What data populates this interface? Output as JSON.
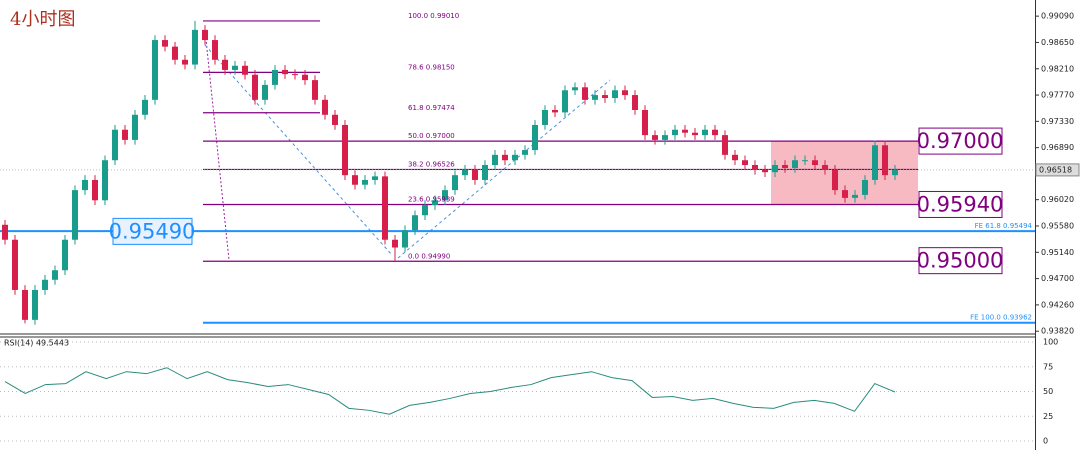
{
  "chart_data": [
    {
      "type": "candlestick",
      "title": "4小时图",
      "ylim": [
        0.9379,
        0.9936
      ],
      "yticks": [
        {
          "value": 0.9909,
          "label": "0.99090"
        },
        {
          "value": 0.9865,
          "label": "0.98650"
        },
        {
          "value": 0.9821,
          "label": "0.98210"
        },
        {
          "value": 0.9777,
          "label": "0.97770"
        },
        {
          "value": 0.9733,
          "label": "0.97330"
        },
        {
          "value": 0.9689,
          "label": "0.96890"
        },
        {
          "value": 0.9602,
          "label": "0.96020"
        },
        {
          "value": 0.9558,
          "label": "0.95580"
        },
        {
          "value": 0.9514,
          "label": "0.95140"
        },
        {
          "value": 0.947,
          "label": "0.94700"
        },
        {
          "value": 0.9426,
          "label": "0.94260"
        },
        {
          "value": 0.9382,
          "label": "0.93820"
        }
      ],
      "up_color": "#1a9c8c",
      "down_color": "#d6204b",
      "open": [
        0.956,
        0.9535,
        0.9451,
        0.9401,
        0.9451,
        0.9468,
        0.9484,
        0.9535,
        0.9618,
        0.9635,
        0.9601,
        0.9668,
        0.9719,
        0.9702,
        0.9744,
        0.9769,
        0.9869,
        0.9858,
        0.9836,
        0.9828,
        0.9886,
        0.9869,
        0.9836,
        0.9819,
        0.9826,
        0.9811,
        0.9769,
        0.9794,
        0.9819,
        0.9812,
        0.9811,
        0.9802,
        0.9769,
        0.9744,
        0.9727,
        0.9643,
        0.9627,
        0.9635,
        0.9641,
        0.9535,
        0.9522,
        0.9551,
        0.9576,
        0.9593,
        0.9601,
        0.9618,
        0.9643,
        0.9652,
        0.9635,
        0.966,
        0.9677,
        0.9668,
        0.9677,
        0.9685,
        0.9727,
        0.9752,
        0.9748,
        0.9785,
        0.979,
        0.9769,
        0.9777,
        0.9772,
        0.9785,
        0.9777,
        0.9752,
        0.971,
        0.9702,
        0.971,
        0.9719,
        0.9714,
        0.971,
        0.9719,
        0.971,
        0.9677,
        0.9668,
        0.966,
        0.9652,
        0.9648,
        0.966,
        0.9655,
        0.9668,
        0.9668,
        0.966,
        0.9652,
        0.9618,
        0.9605,
        0.961,
        0.9635,
        0.9693,
        0.9643
      ],
      "high": [
        0.9568,
        0.9543,
        0.9459,
        0.9459,
        0.9476,
        0.9492,
        0.9543,
        0.9626,
        0.9643,
        0.9643,
        0.9676,
        0.9727,
        0.9727,
        0.9752,
        0.9777,
        0.9877,
        0.9877,
        0.9866,
        0.9844,
        0.9901,
        0.9894,
        0.9877,
        0.9844,
        0.9834,
        0.9834,
        0.9819,
        0.9802,
        0.9827,
        0.9827,
        0.982,
        0.9819,
        0.981,
        0.9777,
        0.9752,
        0.9735,
        0.9651,
        0.9643,
        0.9649,
        0.9649,
        0.9543,
        0.9559,
        0.9584,
        0.9601,
        0.9609,
        0.9626,
        0.9651,
        0.966,
        0.966,
        0.9668,
        0.9685,
        0.9685,
        0.9685,
        0.9693,
        0.9735,
        0.976,
        0.976,
        0.9793,
        0.9798,
        0.9798,
        0.9785,
        0.9785,
        0.9793,
        0.9793,
        0.9785,
        0.976,
        0.9718,
        0.9718,
        0.9727,
        0.9727,
        0.9722,
        0.9727,
        0.9727,
        0.9718,
        0.9685,
        0.9676,
        0.9668,
        0.966,
        0.9668,
        0.9668,
        0.9676,
        0.9676,
        0.9676,
        0.9668,
        0.966,
        0.9626,
        0.9618,
        0.9643,
        0.9701,
        0.9701,
        0.966
      ],
      "low": [
        0.9527,
        0.9443,
        0.9395,
        0.9393,
        0.9443,
        0.946,
        0.9476,
        0.9527,
        0.961,
        0.9593,
        0.9593,
        0.966,
        0.9694,
        0.9694,
        0.9736,
        0.9761,
        0.985,
        0.9828,
        0.982,
        0.982,
        0.9861,
        0.9828,
        0.9811,
        0.9811,
        0.9803,
        0.9761,
        0.9761,
        0.9786,
        0.9804,
        0.9803,
        0.9794,
        0.9761,
        0.9736,
        0.9719,
        0.9635,
        0.9619,
        0.9619,
        0.9627,
        0.9527,
        0.9499,
        0.9514,
        0.9543,
        0.9568,
        0.9585,
        0.9593,
        0.961,
        0.9635,
        0.9627,
        0.9627,
        0.9652,
        0.966,
        0.966,
        0.9669,
        0.9677,
        0.9719,
        0.974,
        0.974,
        0.9777,
        0.9761,
        0.9761,
        0.9764,
        0.9764,
        0.9769,
        0.9744,
        0.9702,
        0.9694,
        0.9694,
        0.9702,
        0.9706,
        0.9702,
        0.9702,
        0.9702,
        0.9669,
        0.966,
        0.9652,
        0.9644,
        0.964,
        0.964,
        0.9647,
        0.9647,
        0.966,
        0.9652,
        0.9644,
        0.961,
        0.9597,
        0.9597,
        0.9602,
        0.9627,
        0.9635,
        0.9635
      ],
      "close": [
        0.9535,
        0.9451,
        0.9401,
        0.9451,
        0.9468,
        0.9484,
        0.9535,
        0.9618,
        0.9635,
        0.9601,
        0.9668,
        0.9719,
        0.9702,
        0.9744,
        0.9769,
        0.9869,
        0.9858,
        0.9836,
        0.9828,
        0.9886,
        0.9869,
        0.9836,
        0.9819,
        0.9826,
        0.9811,
        0.9769,
        0.9794,
        0.9819,
        0.9812,
        0.9811,
        0.9802,
        0.9769,
        0.9744,
        0.9727,
        0.9643,
        0.9627,
        0.9635,
        0.9641,
        0.9535,
        0.9522,
        0.9551,
        0.9576,
        0.9593,
        0.9601,
        0.9618,
        0.9643,
        0.9652,
        0.9635,
        0.966,
        0.9677,
        0.9668,
        0.9677,
        0.9685,
        0.9727,
        0.9752,
        0.9748,
        0.9785,
        0.979,
        0.9769,
        0.9777,
        0.9772,
        0.9785,
        0.9777,
        0.9752,
        0.971,
        0.9702,
        0.971,
        0.9719,
        0.9714,
        0.971,
        0.9719,
        0.971,
        0.9677,
        0.9668,
        0.966,
        0.9652,
        0.9648,
        0.966,
        0.9655,
        0.9668,
        0.9668,
        0.966,
        0.9652,
        0.9618,
        0.9605,
        0.961,
        0.9635,
        0.9693,
        0.9643,
        0.9652
      ],
      "fib": {
        "color": "#800080",
        "levels": [
          {
            "label": "100.0  0.99010",
            "value": 0.9901
          },
          {
            "label": "78.6  0.98150",
            "value": 0.9815
          },
          {
            "label": "61.8  0.97474",
            "value": 0.97474
          },
          {
            "label": "50.0  0.97000",
            "value": 0.97
          },
          {
            "label": "38.2  0.96526",
            "value": 0.96526
          },
          {
            "label": "23.6  0.95939",
            "value": 0.95939
          },
          {
            "label": "0.0  0.94990",
            "value": 0.9499
          }
        ]
      },
      "expansions": {
        "color": "#1e90ff",
        "levels": [
          {
            "label": "FE 61.8  0.95494",
            "value": 0.95494
          },
          {
            "label": "FE 100.0  0.93962",
            "value": 0.93962
          }
        ]
      },
      "boxed_levels": [
        {
          "label": "0.97000",
          "value": 0.97
        },
        {
          "label": "0.95940",
          "value": 0.9594
        },
        {
          "label": "0.95000",
          "value": 0.95
        }
      ],
      "left_label": {
        "label": "0.95490",
        "value": 0.9549
      },
      "zone": {
        "top": 0.97,
        "bottom": 0.9594,
        "color": "#f4a3ad"
      },
      "last_price": {
        "label": "0.96518",
        "value": 0.96518
      }
    },
    {
      "type": "line",
      "title": "RSI(14) 49.5443",
      "ylim": [
        0,
        100
      ],
      "yticks": [
        100,
        75,
        50,
        25,
        0
      ],
      "color": "#2a8c7c",
      "values": [
        60,
        48,
        57,
        58,
        70,
        63,
        70,
        68,
        74,
        63,
        70,
        62,
        59,
        55,
        57,
        52,
        47,
        33,
        31,
        27,
        36,
        39,
        43,
        48,
        50,
        54,
        57,
        64,
        67,
        70,
        64,
        61,
        44,
        45,
        41,
        43,
        38,
        34,
        33,
        39,
        41,
        38,
        30,
        58,
        49.5
      ]
    }
  ]
}
